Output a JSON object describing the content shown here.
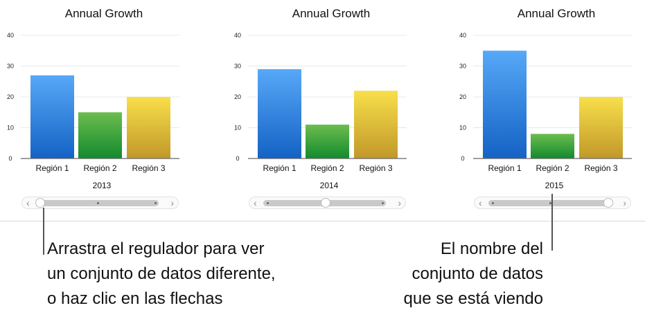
{
  "chart_data": [
    {
      "type": "bar",
      "title": "Annual Growth",
      "categories": [
        "Región 1",
        "Región 2",
        "Región 3"
      ],
      "values": [
        27,
        15,
        20
      ],
      "xlabel": "2013",
      "ylim": [
        0,
        40
      ],
      "yticks": [
        0,
        10,
        20,
        30,
        40
      ],
      "grid": true,
      "slider_position": 0
    },
    {
      "type": "bar",
      "title": "Annual Growth",
      "categories": [
        "Región 1",
        "Región 2",
        "Región 3"
      ],
      "values": [
        29,
        11,
        22
      ],
      "xlabel": "2014",
      "ylim": [
        0,
        40
      ],
      "yticks": [
        0,
        10,
        20,
        30,
        40
      ],
      "grid": true,
      "slider_position": 0.5
    },
    {
      "type": "bar",
      "title": "Annual Growth",
      "categories": [
        "Región 1",
        "Región 2",
        "Región 3"
      ],
      "values": [
        35,
        8,
        20
      ],
      "xlabel": "2015",
      "ylim": [
        0,
        40
      ],
      "yticks": [
        0,
        10,
        20,
        30,
        40
      ],
      "grid": true,
      "slider_position": 1
    }
  ],
  "colors": {
    "region1": [
      "#57a8f8",
      "#1462c4"
    ],
    "region2": [
      "#6cbd4e",
      "#128a2e"
    ],
    "region3": [
      "#f8df4a",
      "#c1982a"
    ]
  },
  "callouts": {
    "left": [
      "Arrastra el regulador para ver",
      "un conjunto de datos diferente,",
      "o haz clic en las flechas"
    ],
    "right": [
      "El nombre del",
      "conjunto de datos",
      "que se está viendo"
    ]
  }
}
